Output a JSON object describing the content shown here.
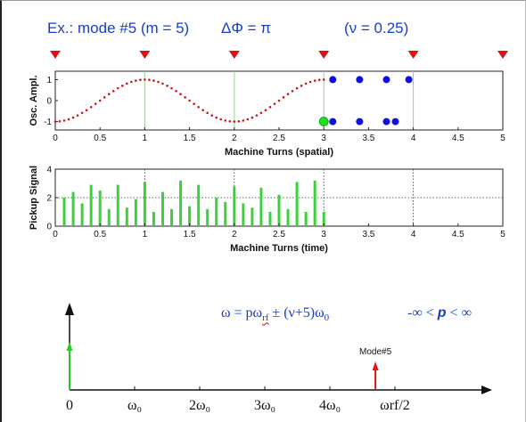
{
  "header": {
    "mode_text": "Ex.: mode #5  (m = 5)",
    "phase_text": "ΔΦ = π",
    "nu_text": "(ν = 0.25)"
  },
  "markers": {
    "positions": [
      0,
      1,
      2,
      3,
      4,
      5
    ],
    "color": "#e01010"
  },
  "chart_data": [
    {
      "type": "scatter",
      "ylabel": "Osc. Ampl.",
      "xlabel": "Machine Turns (spatial)",
      "xlim": [
        0,
        5
      ],
      "ylim": [
        -1.4,
        1.4
      ],
      "xticks": [
        "0",
        "0.5",
        "1",
        "1.5",
        "2",
        "2.5",
        "3",
        "3.5",
        "4",
        "4.5",
        "5"
      ],
      "yticks": [
        "1",
        "0",
        "-1"
      ],
      "grid": "vertical at integers",
      "series": [
        {
          "kind": "sampled cosine",
          "color": "#c81818",
          "x_range": [
            0,
            3
          ],
          "amplitude": 1,
          "period": 2,
          "phase_peak": 1
        },
        {
          "kind": "highlight point",
          "color": "#22dd22",
          "points": [
            [
              3,
              -1
            ]
          ]
        },
        {
          "kind": "points",
          "color": "#1010dd",
          "points": [
            [
              3.1,
              1
            ],
            [
              3.4,
              1
            ],
            [
              3.7,
              1
            ],
            [
              3.95,
              1
            ],
            [
              3.1,
              -1
            ],
            [
              3.4,
              -1
            ],
            [
              3.7,
              -1
            ],
            [
              3.8,
              -1
            ]
          ]
        }
      ]
    },
    {
      "type": "bar",
      "ylabel": "Pickup Signal",
      "xlabel": "Machine Turns (time)",
      "xlim": [
        0,
        5
      ],
      "ylim": [
        0,
        4
      ],
      "xticks": [
        "0",
        "0.5",
        "1",
        "1.5",
        "2",
        "2.5",
        "3",
        "3.5",
        "4",
        "4.5",
        "5"
      ],
      "yticks": [
        "4",
        "2",
        "0"
      ],
      "grid": "dotted",
      "color": "#3ad23a",
      "x": [
        0.1,
        0.2,
        0.3,
        0.4,
        0.5,
        0.6,
        0.7,
        0.8,
        0.9,
        1.0,
        1.1,
        1.2,
        1.3,
        1.4,
        1.5,
        1.6,
        1.7,
        1.8,
        1.9,
        2.0,
        2.1,
        2.2,
        2.3,
        2.4,
        2.5,
        2.6,
        2.7,
        2.8,
        2.9,
        3.0
      ],
      "values": [
        2.0,
        2.4,
        1.6,
        2.9,
        2.5,
        1.2,
        2.9,
        1.3,
        1.9,
        3.1,
        1.0,
        2.4,
        1.2,
        3.2,
        1.4,
        2.9,
        1.2,
        2.0,
        1.7,
        2.8,
        1.6,
        1.3,
        2.7,
        1.0,
        2.2,
        1.2,
        3.1,
        1.0,
        3.2,
        1.0
      ]
    }
  ],
  "formula": {
    "lhs": "ω = pω",
    "sub_rf": "rf",
    "pm": " ± (ν+5)ω",
    "sub_0": "0",
    "range_text": "-∞ <",
    "p": "p",
    "range_end": "< ∞"
  },
  "spectrum": {
    "labels": [
      "0",
      "ω₀",
      "2ω₀",
      "3ω₀",
      "4ω₀",
      "ωrf/2"
    ],
    "label_positions": [
      0,
      1,
      2,
      3,
      4,
      5
    ],
    "mode_label": "Mode#5",
    "mode_position": 4.7,
    "dc_color": "#22cc22",
    "mode_color": "#ee1111"
  }
}
